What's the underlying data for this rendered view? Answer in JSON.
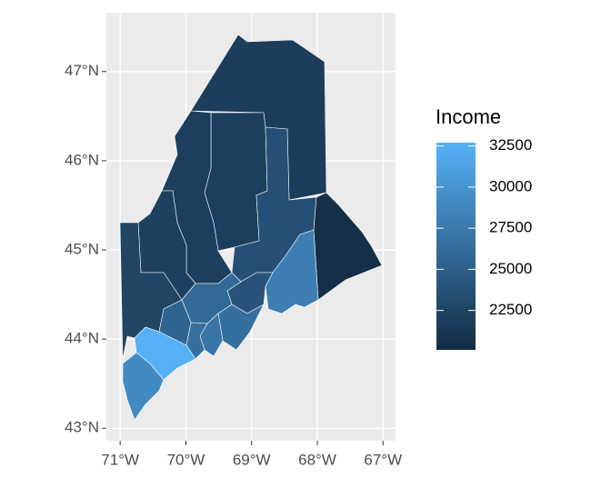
{
  "chart_data": {
    "type": "map",
    "xlim": [
      -71.21,
      -66.81
    ],
    "ylim": [
      42.86,
      47.66
    ],
    "xticks": [
      {
        "value": -71,
        "label": "71°W"
      },
      {
        "value": -70,
        "label": "70°W"
      },
      {
        "value": -69,
        "label": "69°W"
      },
      {
        "value": -68,
        "label": "68°W"
      },
      {
        "value": -67,
        "label": "67°W"
      }
    ],
    "yticks": [
      {
        "value": 43,
        "label": "43°N"
      },
      {
        "value": 44,
        "label": "44°N"
      },
      {
        "value": 45,
        "label": "45°N"
      },
      {
        "value": 46,
        "label": "46°N"
      },
      {
        "value": 47,
        "label": "47°N"
      }
    ],
    "grid": true,
    "values": [
      21800,
      22000,
      22000,
      22200,
      22500,
      23500,
      20500,
      28000,
      24000,
      26000,
      25500,
      26500,
      27000,
      26500,
      32600,
      29000
    ],
    "legend": {
      "title": "Income",
      "limits": [
        20100,
        32700
      ],
      "ticks": [
        22500,
        25000,
        27500,
        30000,
        32500
      ],
      "low_color": "#132B43",
      "high_color": "#56B1F7"
    }
  }
}
